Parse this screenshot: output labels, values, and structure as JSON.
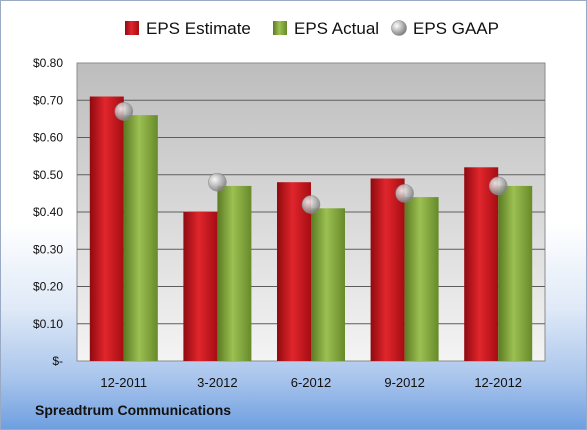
{
  "footer": {
    "company": "Spreadtrum Communications"
  },
  "colors": {
    "estimate": "#c8141c",
    "actual": "#7fa13a",
    "gaap": "#a0a0a0"
  },
  "chart_data": {
    "type": "bar",
    "categories": [
      "12-2011",
      "3-2012",
      "6-2012",
      "9-2012",
      "12-2012"
    ],
    "series": [
      {
        "name": "EPS Estimate",
        "kind": "bar",
        "values": [
          0.71,
          0.4,
          0.48,
          0.49,
          0.52
        ]
      },
      {
        "name": "EPS Actual",
        "kind": "bar",
        "values": [
          0.66,
          0.47,
          0.41,
          0.44,
          0.47
        ]
      },
      {
        "name": "EPS GAAP",
        "kind": "marker",
        "values": [
          0.67,
          0.48,
          0.42,
          0.45,
          0.47
        ]
      }
    ],
    "yticks": [
      {
        "value": 0.0,
        "label": "$-"
      },
      {
        "value": 0.1,
        "label": "$0.10"
      },
      {
        "value": 0.2,
        "label": "$0.20"
      },
      {
        "value": 0.3,
        "label": "$0.30"
      },
      {
        "value": 0.4,
        "label": "$0.40"
      },
      {
        "value": 0.5,
        "label": "$0.50"
      },
      {
        "value": 0.6,
        "label": "$0.60"
      },
      {
        "value": 0.7,
        "label": "$0.70"
      },
      {
        "value": 0.8,
        "label": "$0.80"
      }
    ],
    "ylim": [
      0,
      0.8
    ],
    "grid": true,
    "legend": "top",
    "title": "",
    "xlabel": "",
    "ylabel": ""
  }
}
